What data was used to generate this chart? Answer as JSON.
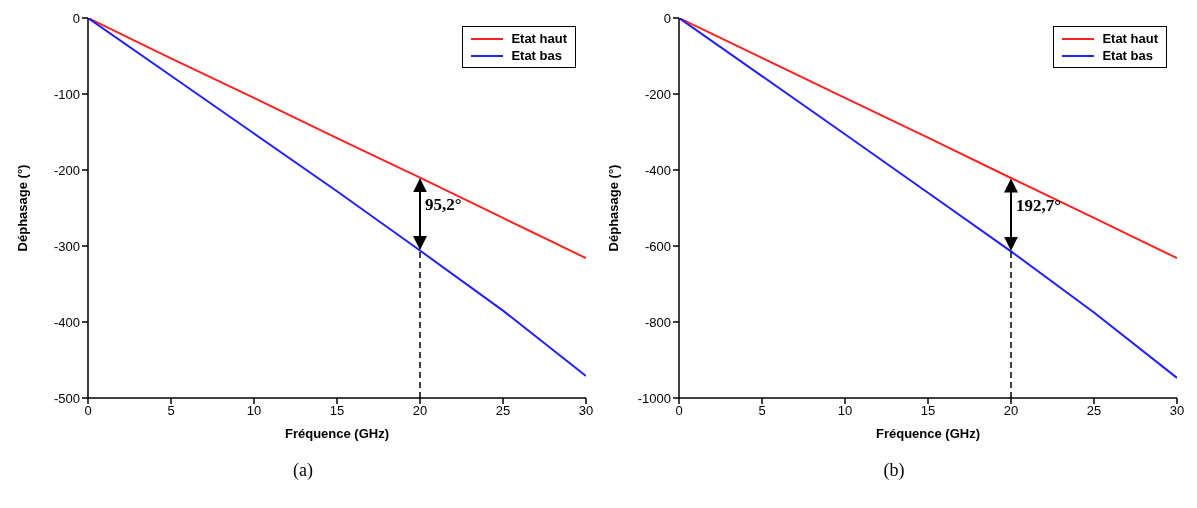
{
  "chart_data": [
    {
      "type": "line",
      "x": [
        0,
        5,
        10,
        15,
        20,
        25,
        30
      ],
      "xlabel": "Fréquence (GHz)",
      "ylabel": "Déphasage (°)",
      "xlim": [
        0,
        30
      ],
      "xticks": [
        0,
        5,
        10,
        15,
        20,
        25,
        30
      ],
      "ylim": [
        -500,
        0
      ],
      "yticks": [
        -500,
        -400,
        -300,
        -200,
        -100,
        0
      ],
      "legend": "top right",
      "marker": "none",
      "line_style": "solid",
      "series": [
        {
          "name": "Etat haut",
          "color": "#ff2020",
          "values": [
            0,
            -53,
            -105,
            -158,
            -210,
            -263,
            -316
          ]
        },
        {
          "name": "Etat bas",
          "color": "#2020ff",
          "values": [
            0,
            -76,
            -152,
            -228,
            -306,
            -385,
            -471
          ]
        }
      ],
      "ref_lines": [
        {
          "axis": "x",
          "value": 20,
          "line_style": "dashed",
          "color": "#000000"
        }
      ],
      "annotations": [
        {
          "text": "95,2°",
          "x": 20,
          "y": -210
        },
        "(a)"
      ]
    },
    {
      "type": "line",
      "x": [
        0,
        5,
        10,
        15,
        20,
        25,
        30
      ],
      "xlabel": "Fréquence (GHz)",
      "ylabel": "Déphasage (°)",
      "xlim": [
        0,
        30
      ],
      "xticks": [
        0,
        5,
        10,
        15,
        20,
        25,
        30
      ],
      "ylim": [
        -1000,
        0
      ],
      "yticks": [
        -1000,
        -800,
        -600,
        -400,
        -200,
        0
      ],
      "legend": "top right",
      "marker": "none",
      "line_style": "solid",
      "series": [
        {
          "name": "Etat haut",
          "color": "#ff2020",
          "values": [
            0,
            -105,
            -210,
            -315,
            -421,
            -526,
            -632
          ]
        },
        {
          "name": "Etat bas",
          "color": "#2020ff",
          "values": [
            0,
            -153,
            -306,
            -460,
            -614,
            -775,
            -947
          ]
        }
      ],
      "ref_lines": [
        {
          "axis": "x",
          "value": 20,
          "line_style": "dashed",
          "color": "#000000"
        }
      ],
      "annotations": [
        {
          "text": "192,7°",
          "x": 20,
          "y": -421
        },
        "(b)"
      ]
    }
  ]
}
